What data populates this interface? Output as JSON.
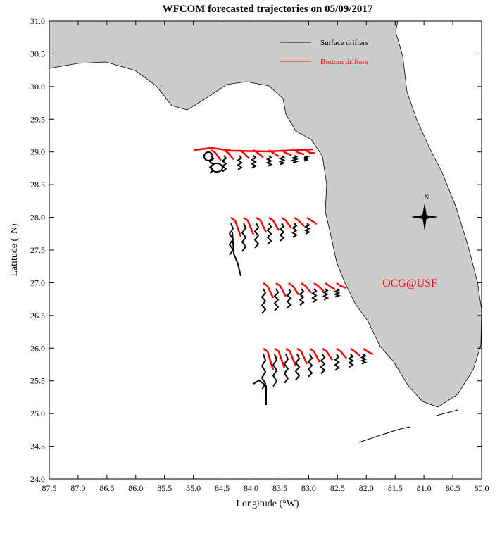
{
  "title": "WFCOM forecasted trajectories on 05/09/2017",
  "x_axis": {
    "label": "Longitude (°W)",
    "lim": [
      87.5,
      80.0
    ],
    "ticks": [
      87.5,
      {
        "value": 87,
        "label": "87.0"
      },
      86.5,
      {
        "value": 86,
        "label": "86.0"
      },
      85.5,
      {
        "value": 85,
        "label": "85.0"
      },
      84.5,
      {
        "value": 84,
        "label": "84.0"
      },
      83.5,
      {
        "value": 83,
        "label": "83.0"
      },
      82.5,
      {
        "value": 82,
        "label": "82.0"
      },
      81.5,
      {
        "value": 81,
        "label": "81.0"
      },
      80.5,
      {
        "value": 80,
        "label": "80.0"
      }
    ]
  },
  "y_axis": {
    "label": "Latitude (°N)",
    "lim": [
      24.0,
      31.0
    ],
    "ticks": [
      {
        "value": 24,
        "label": "24.0"
      },
      24.5,
      {
        "value": 25,
        "label": "25.0"
      },
      25.5,
      {
        "value": 26,
        "label": "26.0"
      },
      26.5,
      {
        "value": 27,
        "label": "27.0"
      },
      27.5,
      {
        "value": 28,
        "label": "28.0"
      },
      28.5,
      {
        "value": 29,
        "label": "29.0"
      },
      29.5,
      {
        "value": 30,
        "label": "30.0"
      },
      30.5,
      {
        "value": 31,
        "label": "31.0"
      }
    ]
  },
  "legend": [
    {
      "name": "Surface drifters",
      "color": "#000000"
    },
    {
      "name": "Bottom drifters",
      "color": "#ff0000"
    }
  ],
  "compass_label": "N",
  "credit": "OCG@USF"
}
